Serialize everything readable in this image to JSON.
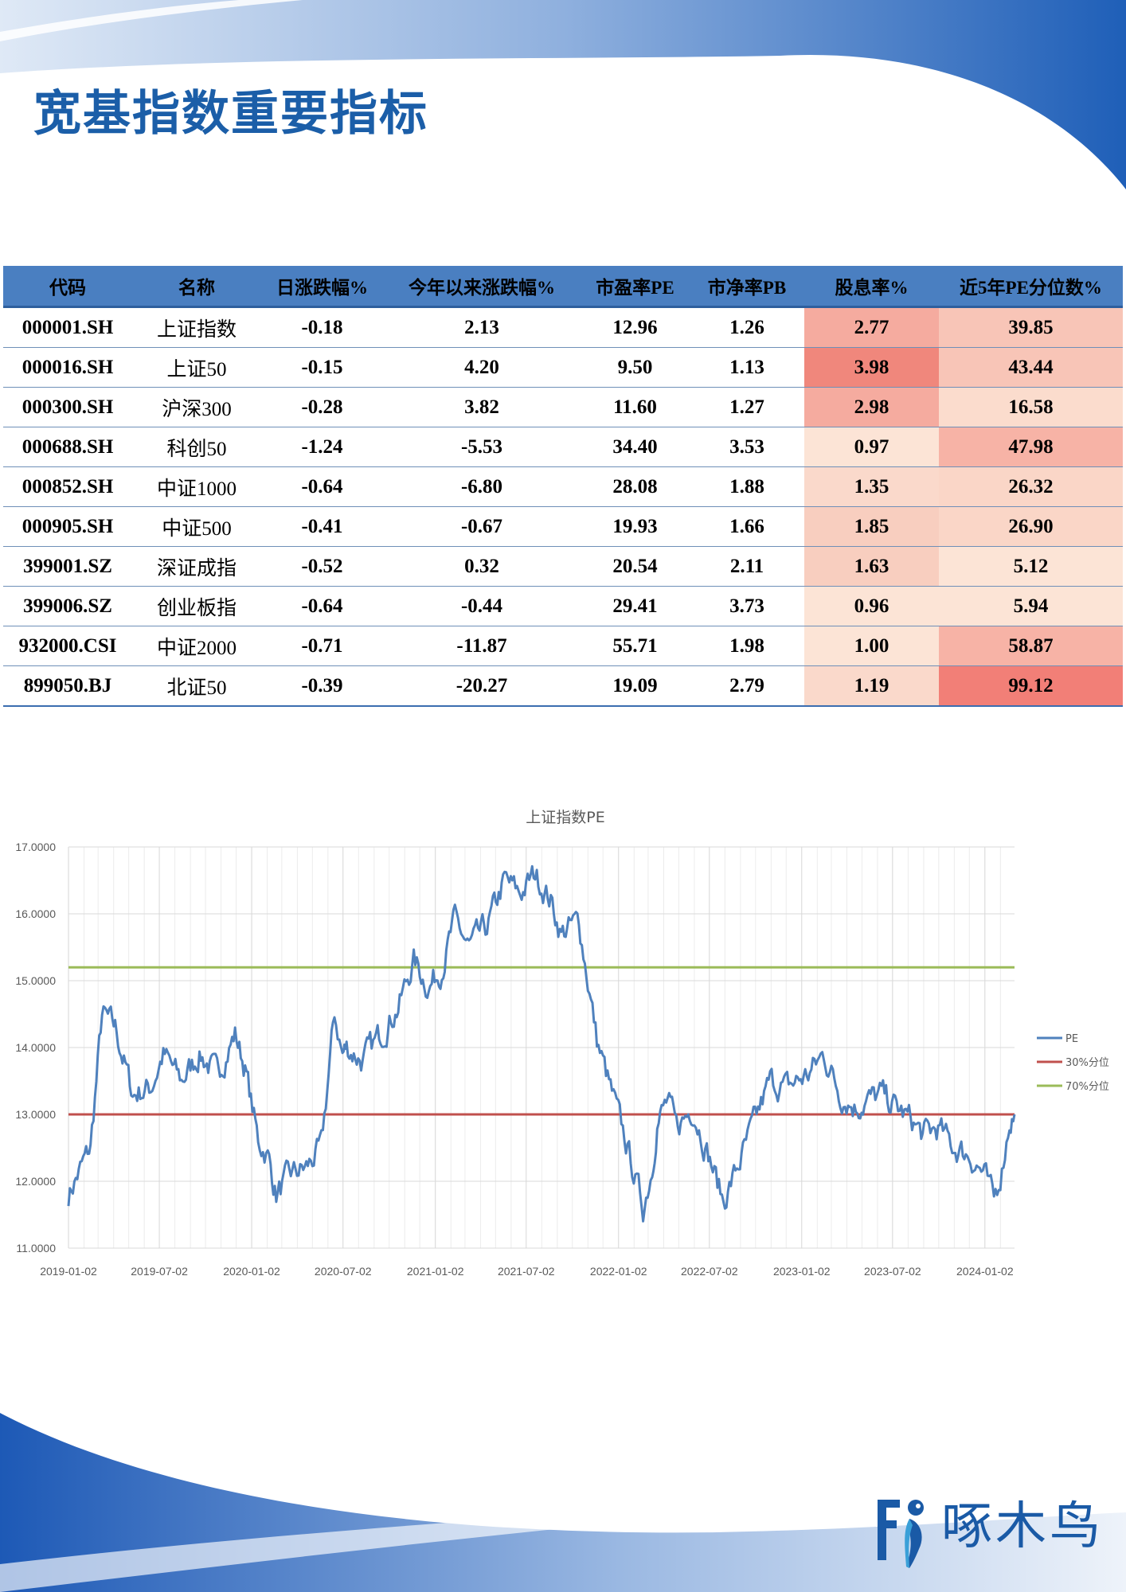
{
  "page": {
    "title": "宽基指数重要指标"
  },
  "colors": {
    "title": "#1b5ea8",
    "header_bg": "#4a7fc1",
    "negative": "#0c8a1e",
    "positive": "#e01010",
    "pe_line": "#4f81bd",
    "p30_line": "#c0504d",
    "p70_line": "#9bbb59",
    "brand": "#1a5aa6"
  },
  "table": {
    "headers": [
      "代码",
      "名称",
      "日涨跌幅%",
      "今年以来涨跌幅%",
      "市盈率PE",
      "市净率PB",
      "股息率%",
      "近5年PE分位数%"
    ],
    "rows": [
      {
        "code": "000001.SH",
        "name": "上证指数",
        "daily": "-0.18",
        "ytd": "2.13",
        "pe": "12.96",
        "pb": "1.26",
        "div": "2.77",
        "pct": "39.85"
      },
      {
        "code": "000016.SH",
        "name": "上证50",
        "daily": "-0.15",
        "ytd": "4.20",
        "pe": "9.50",
        "pb": "1.13",
        "div": "3.98",
        "pct": "43.44"
      },
      {
        "code": "000300.SH",
        "name": "沪深300",
        "daily": "-0.28",
        "ytd": "3.82",
        "pe": "11.60",
        "pb": "1.27",
        "div": "2.98",
        "pct": "16.58"
      },
      {
        "code": "000688.SH",
        "name": "科创50",
        "daily": "-1.24",
        "ytd": "-5.53",
        "pe": "34.40",
        "pb": "3.53",
        "div": "0.97",
        "pct": "47.98"
      },
      {
        "code": "000852.SH",
        "name": "中证1000",
        "daily": "-0.64",
        "ytd": "-6.80",
        "pe": "28.08",
        "pb": "1.88",
        "div": "1.35",
        "pct": "26.32"
      },
      {
        "code": "000905.SH",
        "name": "中证500",
        "daily": "-0.41",
        "ytd": "-0.67",
        "pe": "19.93",
        "pb": "1.66",
        "div": "1.85",
        "pct": "26.90"
      },
      {
        "code": "399001.SZ",
        "name": "深证成指",
        "daily": "-0.52",
        "ytd": "0.32",
        "pe": "20.54",
        "pb": "2.11",
        "div": "1.63",
        "pct": "5.12"
      },
      {
        "code": "399006.SZ",
        "name": "创业板指",
        "daily": "-0.64",
        "ytd": "-0.44",
        "pe": "29.41",
        "pb": "3.73",
        "div": "0.96",
        "pct": "5.94"
      },
      {
        "code": "932000.CSI",
        "name": "中证2000",
        "daily": "-0.71",
        "ytd": "-11.87",
        "pe": "55.71",
        "pb": "1.98",
        "div": "1.00",
        "pct": "58.87"
      },
      {
        "code": "899050.BJ",
        "name": "北证50",
        "daily": "-0.39",
        "ytd": "-20.27",
        "pe": "19.09",
        "pb": "2.79",
        "div": "1.19",
        "pct": "99.12"
      }
    ]
  },
  "chart_data": {
    "type": "line",
    "title": "上证指数PE",
    "ylim": [
      11,
      17
    ],
    "y_ticks": [
      "11.0000",
      "12.0000",
      "13.0000",
      "14.0000",
      "15.0000",
      "16.0000",
      "17.0000"
    ],
    "x_tick_labels": [
      "2019-01-02",
      "2019-07-02",
      "2020-01-02",
      "2020-07-02",
      "2021-01-02",
      "2021-07-02",
      "2022-01-02",
      "2022-07-02",
      "2023-01-02",
      "2023-07-02",
      "2024-01-02"
    ],
    "grid": true,
    "legend_position": "right",
    "series": [
      {
        "name": "PE",
        "x": [
          "2019-01-02",
          "2019-02-15",
          "2019-03-10",
          "2019-04-05",
          "2019-05-10",
          "2019-06-15",
          "2019-07-10",
          "2019-08-15",
          "2019-09-20",
          "2019-10-25",
          "2019-11-30",
          "2019-12-20",
          "2020-01-15",
          "2020-02-03",
          "2020-02-20",
          "2020-03-20",
          "2020-04-20",
          "2020-05-20",
          "2020-06-15",
          "2020-07-01",
          "2020-07-09",
          "2020-08-10",
          "2020-09-15",
          "2020-10-20",
          "2020-11-20",
          "2020-12-20",
          "2021-01-15",
          "2021-02-10",
          "2021-03-10",
          "2021-04-15",
          "2021-05-20",
          "2021-06-20",
          "2021-07-20",
          "2021-08-20",
          "2021-09-10",
          "2021-10-15",
          "2021-11-20",
          "2021-12-20",
          "2022-01-20",
          "2022-02-20",
          "2022-03-10",
          "2022-03-20",
          "2022-04-10",
          "2022-04-27",
          "2022-05-30",
          "2022-06-30",
          "2022-07-30",
          "2022-09-01",
          "2022-10-01",
          "2022-10-31",
          "2022-12-01",
          "2023-01-15",
          "2023-02-15",
          "2023-03-20",
          "2023-04-20",
          "2023-05-10",
          "2023-06-10",
          "2023-07-10",
          "2023-08-10",
          "2023-08-31",
          "2023-10-01",
          "2023-11-01",
          "2023-12-01",
          "2024-01-01",
          "2024-01-20",
          "2024-02-05",
          "2024-02-20",
          "2024-03-01"
        ],
        "values": [
          11.8,
          12.5,
          14.5,
          14.3,
          13.3,
          13.4,
          13.9,
          13.5,
          13.9,
          13.6,
          14.2,
          13.7,
          12.6,
          12.4,
          11.8,
          12.1,
          12.2,
          12.5,
          14.5,
          13.9,
          14.0,
          13.8,
          14.2,
          14.6,
          15.3,
          14.9,
          15.2,
          15.9,
          15.5,
          15.8,
          16.5,
          16.3,
          16.6,
          16.2,
          15.7,
          15.9,
          14.1,
          13.3,
          12.5,
          11.6,
          12.2,
          12.9,
          13.2,
          12.8,
          13.1,
          12.4,
          11.7,
          12.3,
          12.9,
          13.5,
          13.4,
          13.6,
          13.9,
          13.3,
          13.1,
          13.2,
          13.3,
          13.1,
          12.9,
          12.7,
          12.8,
          12.5,
          12.4,
          12.1,
          11.7,
          12.2,
          12.9,
          13.0
        ]
      },
      {
        "name": "30%分位",
        "values": [
          13.0
        ]
      },
      {
        "name": "70%分位",
        "values": [
          15.2
        ]
      }
    ]
  },
  "brand": {
    "name": "啄木鸟"
  }
}
